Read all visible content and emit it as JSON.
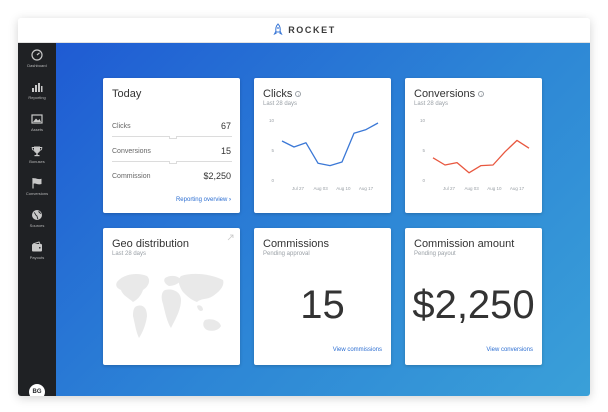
{
  "brand": {
    "name": "ROCKET",
    "logo_icon": "rocket-icon"
  },
  "sidebar": {
    "items": [
      {
        "label": "Dashboard",
        "icon": "dashboard-icon"
      },
      {
        "label": "Reporting",
        "icon": "bar-chart-icon"
      },
      {
        "label": "Assets",
        "icon": "image-icon"
      },
      {
        "label": "Bonuses",
        "icon": "trophy-icon"
      },
      {
        "label": "Conversions",
        "icon": "flag-icon"
      },
      {
        "label": "Sources",
        "icon": "globe-icon"
      },
      {
        "label": "Payouts",
        "icon": "wallet-icon"
      }
    ],
    "avatar_initials": "BG"
  },
  "today": {
    "title": "Today",
    "rows": [
      {
        "label": "Clicks",
        "value": "67"
      },
      {
        "label": "Conversions",
        "value": "15"
      },
      {
        "label": "Commission",
        "value": "$2,250"
      }
    ],
    "link": "Reporting overview"
  },
  "clicks": {
    "title": "Clicks",
    "subtitle": "Last 28 days",
    "color": "#3b78d6",
    "chart_data": {
      "type": "line",
      "ylim": [
        0,
        10
      ],
      "y_ticks": [
        "10",
        "5",
        "0"
      ],
      "x_ticks": [
        "Jul 27",
        "Aug 03",
        "Aug 10",
        "Aug 17"
      ],
      "series": [
        {
          "values": [
            6.5,
            5.5,
            6.2,
            2.8,
            2.4,
            3.0,
            7.8,
            8.4,
            9.5
          ]
        }
      ]
    }
  },
  "conversions": {
    "title": "Conversions",
    "subtitle": "Last 28 days",
    "color": "#e8573f",
    "chart_data": {
      "type": "line",
      "ylim": [
        0,
        10
      ],
      "y_ticks": [
        "10",
        "5",
        "0"
      ],
      "x_ticks": [
        "Jul 27",
        "Aug 03",
        "Aug 10",
        "Aug 17"
      ],
      "series": [
        {
          "values": [
            3.7,
            2.5,
            2.9,
            1.2,
            2.4,
            2.5,
            4.7,
            6.6,
            5.3
          ]
        }
      ]
    }
  },
  "geo": {
    "title": "Geo distribution",
    "subtitle": "Last 28 days",
    "expand_icon": "expand-icon"
  },
  "commissions": {
    "title": "Commissions",
    "subtitle": "Pending approval",
    "value": "15",
    "link": "View commissions"
  },
  "commission_amount": {
    "title": "Commission amount",
    "subtitle": "Pending payout",
    "value": "$2,250",
    "link": "View conversions"
  }
}
